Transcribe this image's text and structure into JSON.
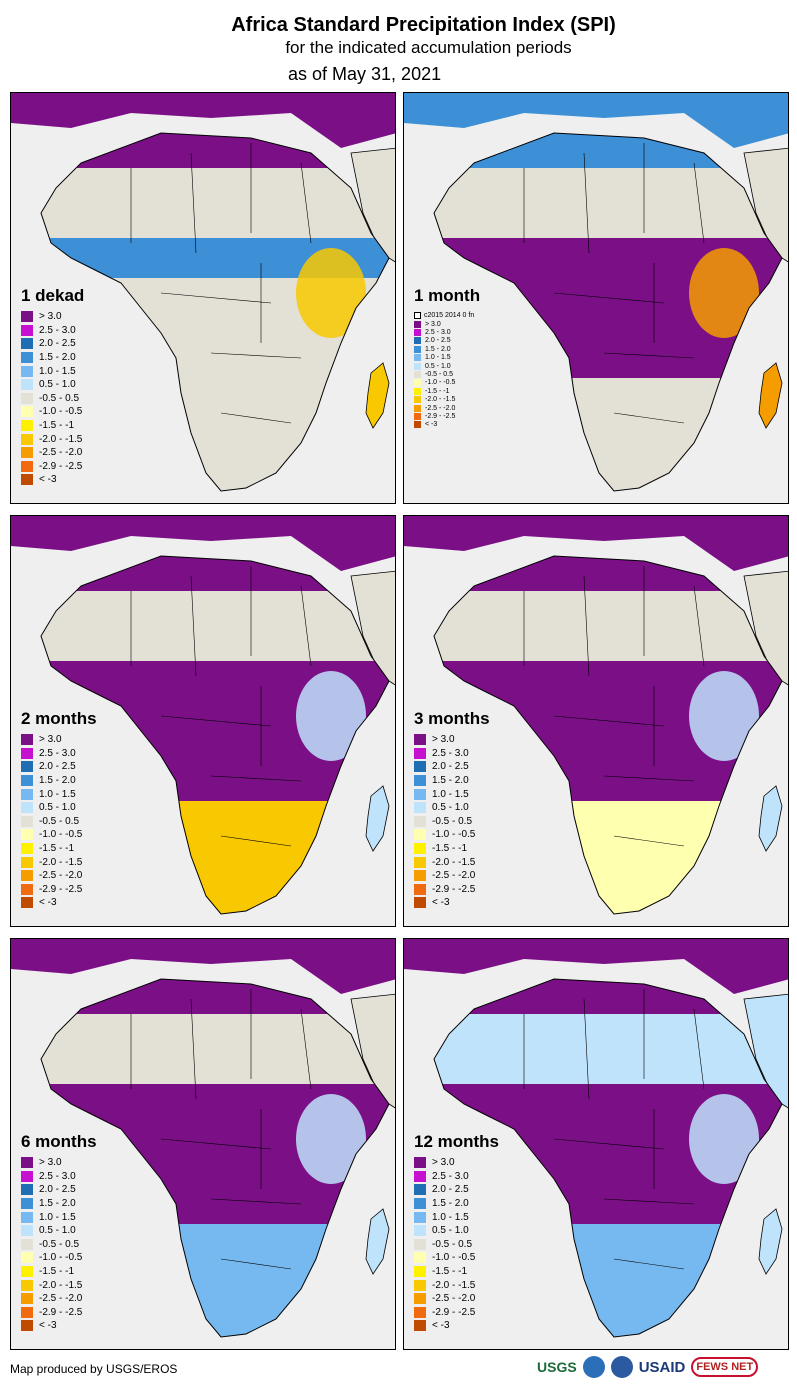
{
  "header": {
    "title": "Africa Standard Precipitation Index (SPI)",
    "subtitle": "for the indicated accumulation periods",
    "date": "as of May 31, 2021"
  },
  "legend_classes": [
    {
      "label": "> 3.0",
      "color": "#7b0f86"
    },
    {
      "label": "2.5 - 3.0",
      "color": "#c60fd1"
    },
    {
      "label": "2.0 - 2.5",
      "color": "#1f6db3"
    },
    {
      "label": "1.5 - 2.0",
      "color": "#3d8fd6"
    },
    {
      "label": "1.0 - 1.5",
      "color": "#76b9f0"
    },
    {
      "label": "0.5 - 1.0",
      "color": "#bfe3fb"
    },
    {
      "label": "-0.5 - 0.5",
      "color": "#e3e0d6"
    },
    {
      "label": "-1.0 - -0.5",
      "color": "#ffffb0"
    },
    {
      "label": "-1.5 - -1",
      "color": "#fff000"
    },
    {
      "label": "-2.0 - -1.5",
      "color": "#f8c800"
    },
    {
      "label": "-2.5 - -2.0",
      "color": "#f59c00"
    },
    {
      "label": "-2.9 - -2.5",
      "color": "#f26a10"
    },
    {
      "label": "< -3",
      "color": "#c04a00"
    }
  ],
  "legend_1month_labels": [
    "> 3.0",
    "2.5 - 3.0",
    "2.0 - 2.5",
    "1.5 - 2.0",
    "1.0 - 1.5",
    "0.5 - 1.0",
    "-0.5 - 0.5",
    "-1.0 - -0.5",
    "-1.5 - -1",
    "-2.0 - -1.5",
    "-2.5 - -2.0",
    "-2.9 - -2.5",
    "< -3"
  ],
  "legend_1month_note": "c2015 2014 0 fn",
  "panels": [
    {
      "period": "1 dekad",
      "dominant": "#e3e0d6",
      "north": "#e3e0d6",
      "sahel": "#3d8fd6",
      "central": "#e3e0d6",
      "south": "#e3e0d6",
      "east": "#f8c800",
      "accent": "#7b0f86"
    },
    {
      "period": "1 month",
      "dominant": "#e3e0d6",
      "north": "#e3e0d6",
      "sahel": "#7b0f86",
      "central": "#7b0f86",
      "south": "#e3e0d6",
      "east": "#f59c00",
      "accent": "#3d8fd6"
    },
    {
      "period": "2 months",
      "dominant": "#7b0f86",
      "north": "#e3e0d6",
      "sahel": "#7b0f86",
      "central": "#7b0f86",
      "south": "#f8c800",
      "east": "#bfe3fb",
      "accent": "#7b0f86"
    },
    {
      "period": "3 months",
      "dominant": "#7b0f86",
      "north": "#e3e0d6",
      "sahel": "#7b0f86",
      "central": "#7b0f86",
      "south": "#ffffb0",
      "east": "#bfe3fb",
      "accent": "#7b0f86"
    },
    {
      "period": "6 months",
      "dominant": "#7b0f86",
      "north": "#e3e0d6",
      "sahel": "#7b0f86",
      "central": "#7b0f86",
      "south": "#76b9f0",
      "east": "#bfe3fb",
      "accent": "#7b0f86"
    },
    {
      "period": "12 months",
      "dominant": "#7b0f86",
      "north": "#bfe3fb",
      "sahel": "#7b0f86",
      "central": "#7b0f86",
      "south": "#76b9f0",
      "east": "#bfe3fb",
      "accent": "#7b0f86"
    }
  ],
  "footer": {
    "credit": "Map produced by USGS/EROS",
    "logo_usgs": "USGS",
    "logo_usaid": "USAID",
    "logo_fews": "FEWS NET"
  }
}
